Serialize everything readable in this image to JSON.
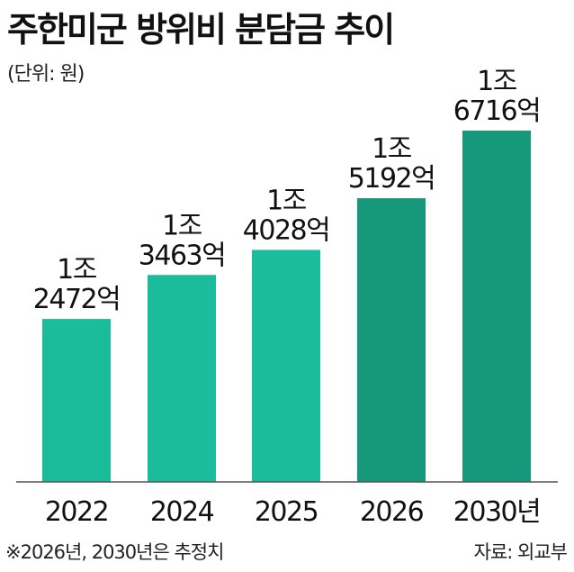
{
  "title": "주한미군 방위비 분담금 추이",
  "unit": "(단위: 원)",
  "note": "※2026년, 2030년은 추정치",
  "source": "자료: 외교부",
  "colors": {
    "actual": "#1abc9c",
    "estimate": "#16997a"
  },
  "chart_data": {
    "type": "bar",
    "categories": [
      "2022",
      "2024",
      "2025",
      "2026",
      "2030년"
    ],
    "values": [
      12472,
      13463,
      14028,
      15192,
      16716
    ],
    "value_unit": "억 원",
    "data_labels": [
      [
        "1조",
        "2472억"
      ],
      [
        "1조",
        "3463억"
      ],
      [
        "1조",
        "4028억"
      ],
      [
        "1조",
        "5192억"
      ],
      [
        "1조",
        "6716억"
      ]
    ],
    "estimated": [
      false,
      false,
      false,
      true,
      true
    ],
    "title": "주한미군 방위비 분담금 추이",
    "xlabel": "",
    "ylabel": "",
    "ylim": [
      0,
      16716
    ],
    "grid": false,
    "legend": "none"
  }
}
